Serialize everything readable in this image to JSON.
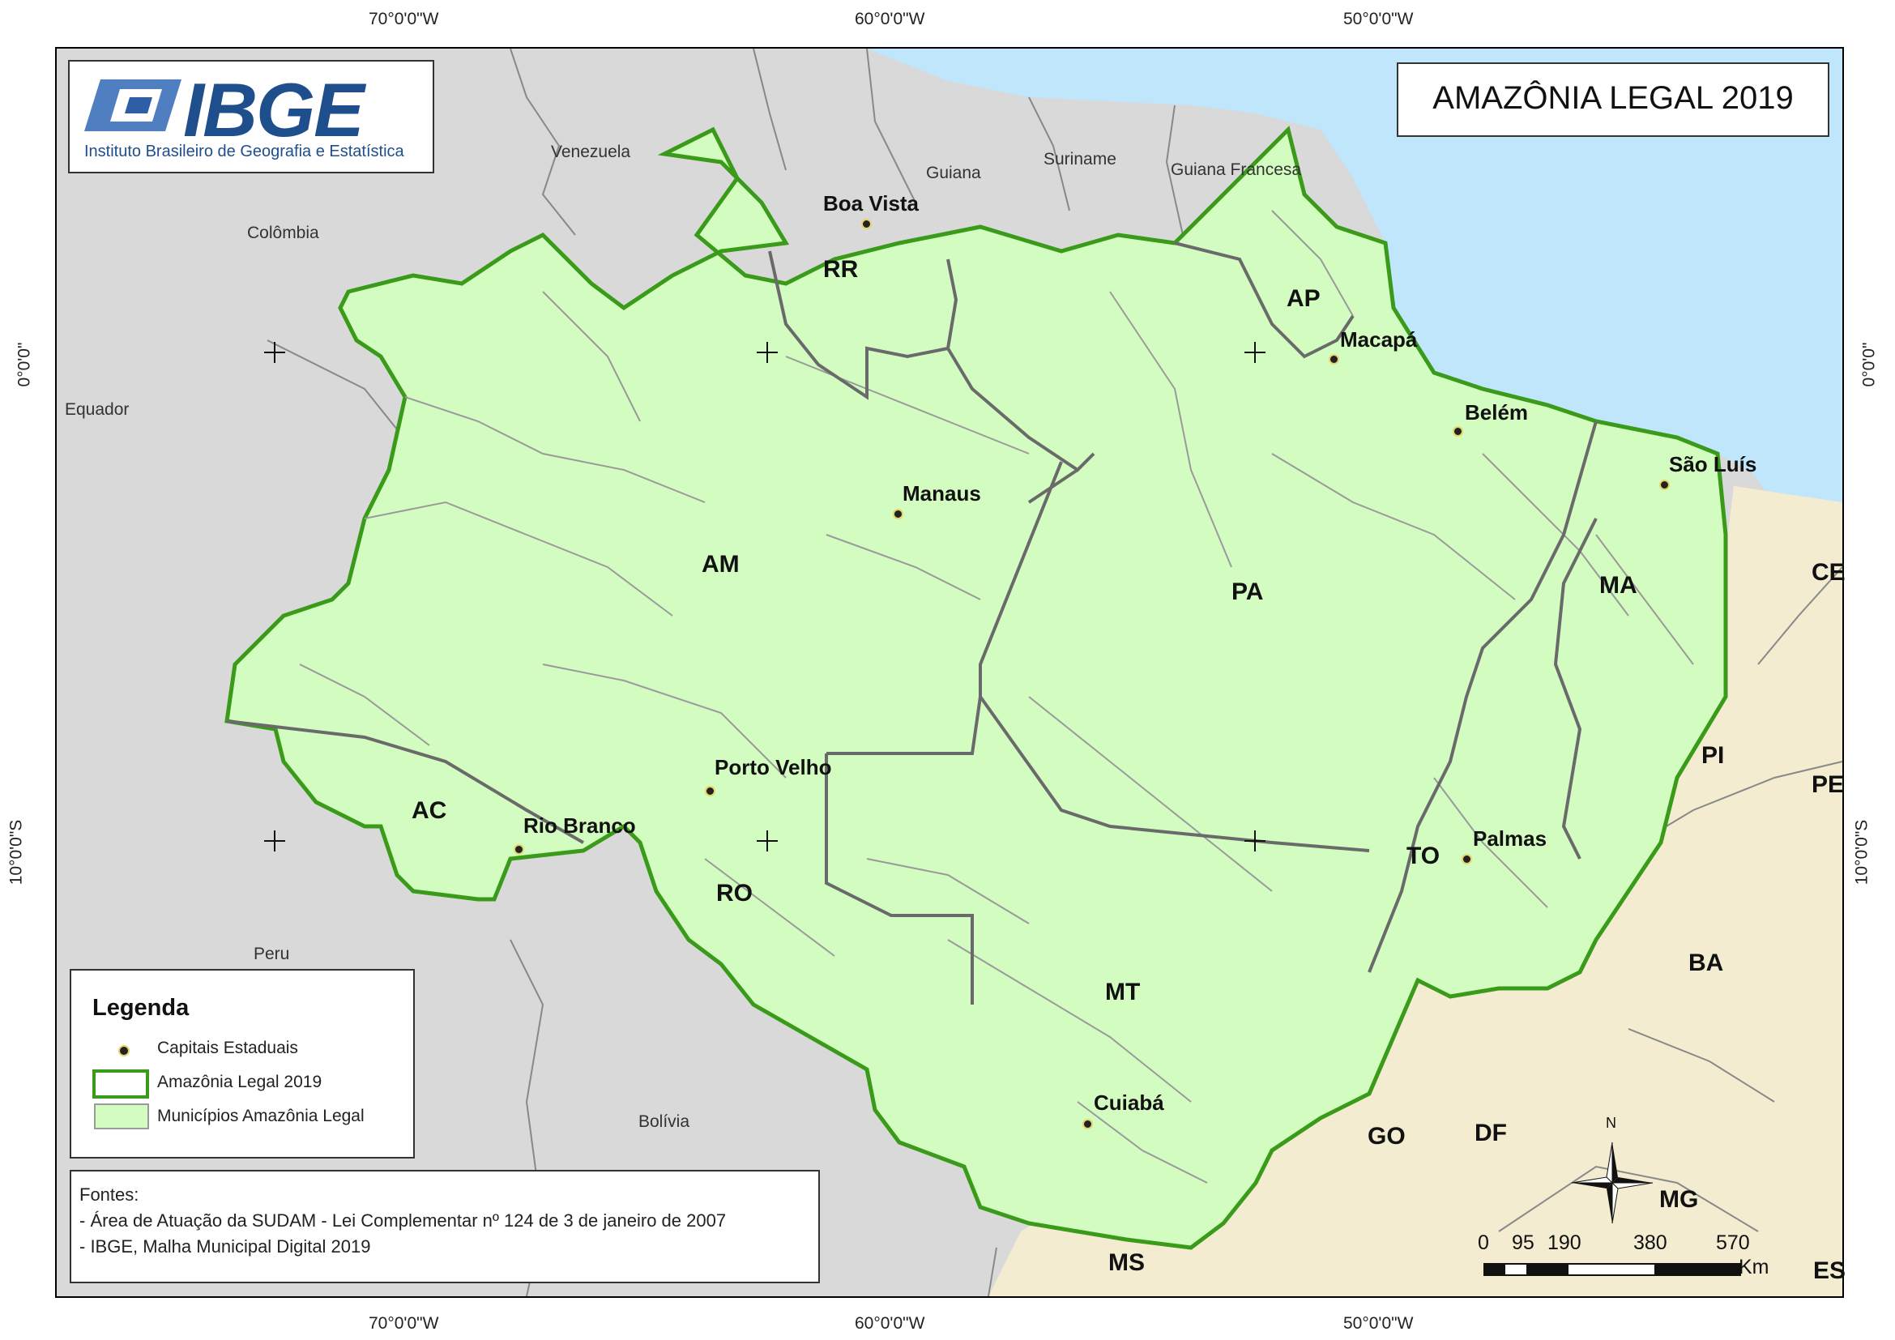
{
  "title": "AMAZÔNIA LEGAL 2019",
  "logo": {
    "name": "IBGE",
    "subtitle": "Instituto Brasileiro de Geografia e Estatística"
  },
  "graticule": {
    "lon_70": "70°0'0\"W",
    "lon_60": "60°0'0\"W",
    "lon_50": "50°0'0\"W",
    "lat_0": "0°0'0\"",
    "lat_10": "10°0'0\"S"
  },
  "countries": [
    "Venezuela",
    "Guiana",
    "Suriname",
    "Guiana Francesa",
    "Colômbia",
    "Equador",
    "Peru",
    "Bolívia"
  ],
  "states": {
    "RR": "RR",
    "AP": "AP",
    "AM": "AM",
    "PA": "PA",
    "MA": "MA",
    "AC": "AC",
    "RO": "RO",
    "TO": "TO",
    "MT": "MT",
    "CE": "CE",
    "PI": "PI",
    "PE": "PE",
    "BA": "BA",
    "GO": "GO",
    "DF": "DF",
    "MG": "MG",
    "MS": "MS",
    "ES": "ES"
  },
  "capitals": [
    "Boa Vista",
    "Macapá",
    "Belém",
    "São Luís",
    "Manaus",
    "Porto Velho",
    "Rio Branco",
    "Palmas",
    "Cuiabá"
  ],
  "legend": {
    "title": "Legenda",
    "items": [
      "Capitais Estaduais",
      "Amazônia Legal 2019",
      "Municípios Amazônia Legal"
    ]
  },
  "sources": {
    "heading": "Fontes:",
    "lines": [
      "- Área de Atuação da SUDAM - Lei Complementar nº 124 de 3 de janeiro de 2007",
      "- IBGE, Malha Municipal Digital 2019"
    ]
  },
  "scale": {
    "ticks": [
      "0",
      "95",
      "190",
      "380",
      "570"
    ],
    "unit": "Km"
  },
  "north_label": "N",
  "colors": {
    "amazonia_fill": "#d3fcc0",
    "amazonia_border": "#3a9a1a",
    "ocean": "#bfe6fb",
    "brazil_other": "#f3ecd0",
    "neighbor": "#d9d9d9"
  }
}
